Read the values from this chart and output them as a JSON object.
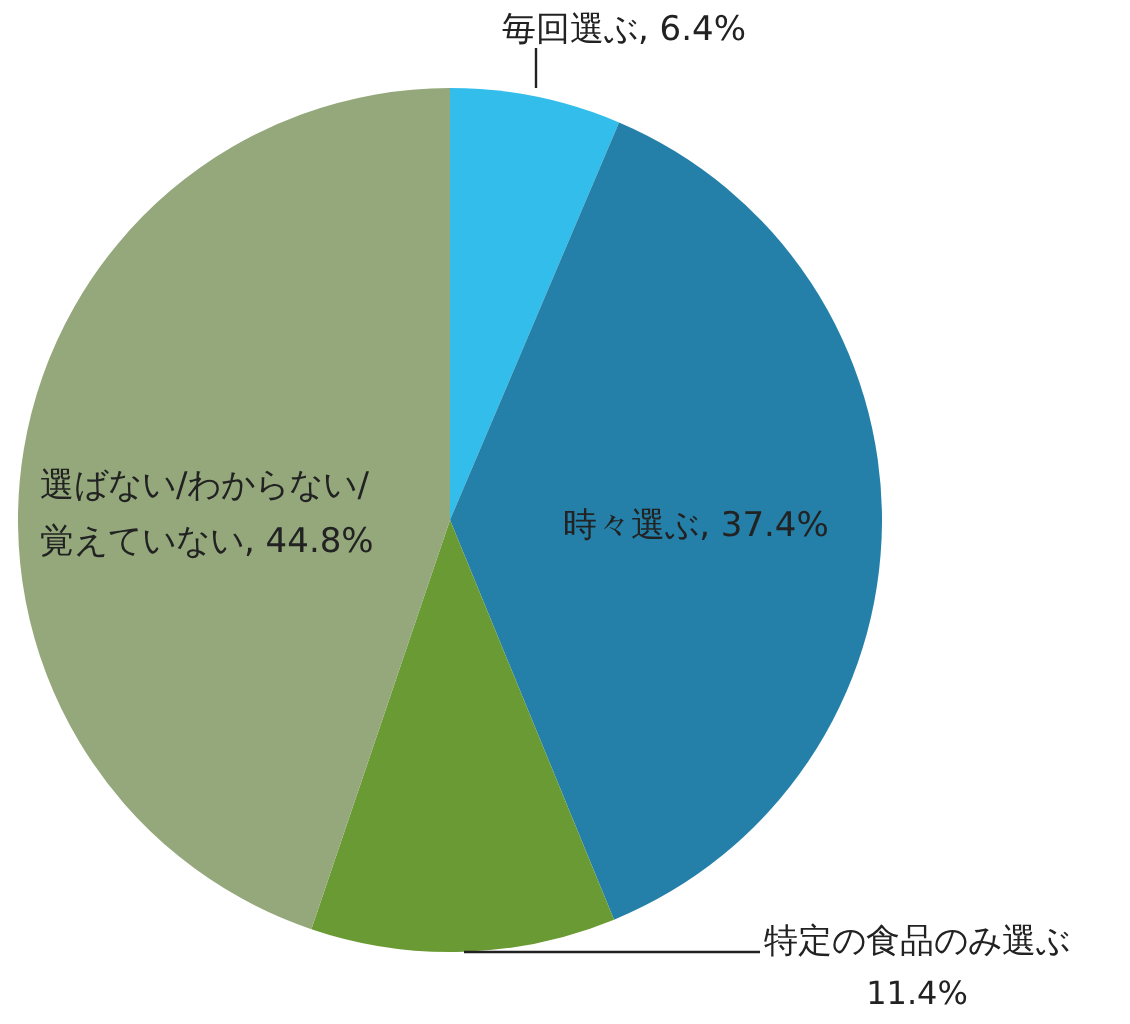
{
  "chart_data": {
    "type": "pie",
    "categories": [
      "毎回選ぶ",
      "時々選ぶ",
      "特定の食品のみ選ぶ",
      "選ばない/わからない/覚えていない"
    ],
    "values": [
      6.4,
      37.4,
      11.4,
      44.8
    ],
    "value_labels": [
      "6.4%",
      "37.4%",
      "11.4%",
      "44.8%"
    ],
    "colors": [
      "#33bdea",
      "#2480a8",
      "#6a9a34",
      "#94a87c"
    ]
  }
}
